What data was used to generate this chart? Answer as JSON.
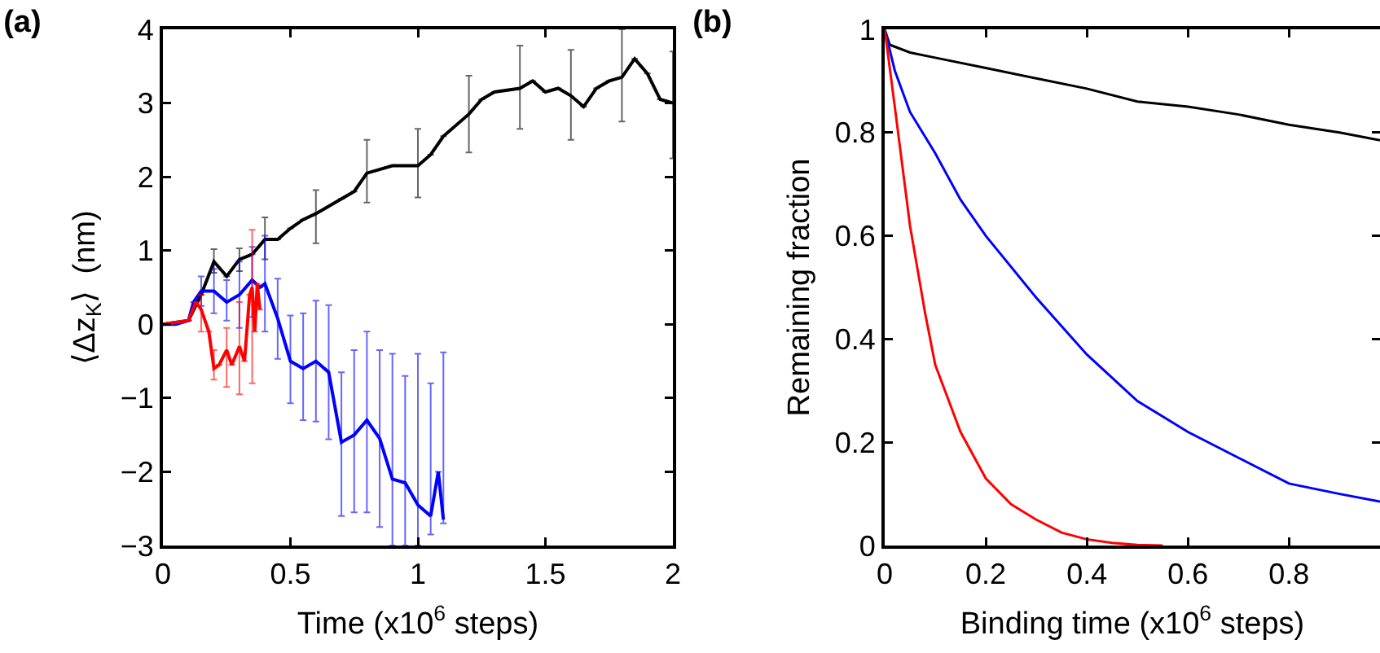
{
  "chart_data": [
    {
      "type": "line",
      "title": "(a)",
      "xlabel": "Time (x10$^{6}$ steps)",
      "ylabel": "⟨Δz$_{K}$⟩  (nm)",
      "xlim": [
        0,
        2
      ],
      "xticks": [
        0,
        0.5,
        1,
        1.5,
        2
      ],
      "ylim": [
        -3,
        4
      ],
      "yticks": [
        -3,
        -2,
        -1,
        0,
        1,
        2,
        3,
        4
      ],
      "grid": false,
      "series": [
        {
          "color": "#000000",
          "x": [
            0,
            0.1,
            0.15,
            0.2,
            0.25,
            0.3,
            0.35,
            0.4,
            0.45,
            0.5,
            0.55,
            0.6,
            0.7,
            0.75,
            0.8,
            0.9,
            1.0,
            1.05,
            1.1,
            1.2,
            1.25,
            1.3,
            1.4,
            1.45,
            1.5,
            1.55,
            1.6,
            1.65,
            1.7,
            1.75,
            1.8,
            1.85,
            1.9,
            1.95,
            2.0
          ],
          "values": [
            0,
            0.05,
            0.4,
            0.85,
            0.65,
            0.88,
            0.95,
            1.15,
            1.15,
            1.3,
            1.42,
            1.5,
            1.7,
            1.8,
            2.05,
            2.15,
            2.15,
            2.3,
            2.55,
            2.85,
            3.05,
            3.15,
            3.2,
            3.3,
            3.15,
            3.2,
            3.1,
            2.95,
            3.2,
            3.3,
            3.35,
            3.6,
            3.4,
            3.05,
            3.0
          ],
          "errors": [
            null,
            null,
            null,
            [
              0.7,
              1.02
            ],
            null,
            [
              0.72,
              1.03
            ],
            null,
            [
              0.88,
              1.45
            ],
            null,
            null,
            null,
            [
              1.1,
              1.82
            ],
            null,
            null,
            [
              1.65,
              2.5
            ],
            null,
            [
              1.72,
              2.65
            ],
            null,
            null,
            [
              2.33,
              3.37
            ],
            null,
            null,
            [
              2.65,
              3.78
            ],
            null,
            null,
            null,
            [
              2.5,
              3.72
            ],
            null,
            null,
            null,
            [
              2.75,
              4.0
            ],
            null,
            null,
            null,
            [
              2.25,
              3.7
            ]
          ]
        },
        {
          "color": "#0000ff",
          "x": [
            0,
            0.05,
            0.1,
            0.12,
            0.15,
            0.2,
            0.25,
            0.3,
            0.35,
            0.38,
            0.4,
            0.45,
            0.5,
            0.55,
            0.6,
            0.65,
            0.7,
            0.75,
            0.8,
            0.85,
            0.9,
            0.95,
            1.0,
            1.05,
            1.08,
            1.1
          ],
          "values": [
            0,
            0,
            0.05,
            0.3,
            0.45,
            0.45,
            0.3,
            0.4,
            0.6,
            0.5,
            0.55,
            0.08,
            -0.5,
            -0.6,
            -0.5,
            -0.65,
            -1.6,
            -1.5,
            -1.3,
            -1.55,
            -2.1,
            -2.15,
            -2.45,
            -2.6,
            -2.0,
            -2.65
          ],
          "errors": [
            null,
            null,
            null,
            null,
            [
              0.25,
              0.65
            ],
            [
              0.15,
              0.75
            ],
            [
              0.05,
              0.6
            ],
            [
              -0.05,
              0.85
            ],
            [
              0.1,
              1.05
            ],
            null,
            [
              -0.1,
              1.2
            ],
            [
              -0.47,
              0.62
            ],
            [
              -1.07,
              0.12
            ],
            [
              -1.3,
              0.15
            ],
            [
              -1.32,
              0.32
            ],
            [
              -1.56,
              0.26
            ],
            [
              -2.6,
              -0.65
            ],
            [
              -2.55,
              -0.35
            ],
            [
              -2.55,
              -0.1
            ],
            [
              -2.75,
              -0.35
            ],
            [
              -3,
              -0.4
            ],
            [
              -3,
              -0.7
            ],
            [
              -3,
              -0.4
            ],
            [
              -2.85,
              -0.8
            ],
            null,
            [
              -2.7,
              -0.38
            ]
          ]
        },
        {
          "color": "#ff0000",
          "x": [
            0,
            0.1,
            0.13,
            0.15,
            0.18,
            0.2,
            0.22,
            0.25,
            0.27,
            0.3,
            0.32,
            0.34,
            0.35,
            0.36,
            0.37,
            0.38
          ],
          "values": [
            0,
            0.05,
            0.3,
            0.2,
            -0.1,
            -0.6,
            -0.55,
            -0.35,
            -0.55,
            -0.3,
            -0.5,
            0.4,
            0.5,
            -0.1,
            0.55,
            0.2
          ],
          "errors": [
            null,
            null,
            null,
            [
              -0.1,
              0.4
            ],
            null,
            [
              -0.75,
              -0.35
            ],
            null,
            [
              -0.85,
              -0.05
            ],
            null,
            [
              -0.95,
              0.3
            ],
            null,
            null,
            [
              -0.8,
              1.28
            ],
            null,
            null,
            null
          ]
        }
      ]
    },
    {
      "type": "line",
      "title": "(b)",
      "xlabel": "Binding time (x10$^{6}$ steps)",
      "ylabel": "Remaining fraction",
      "xlim": [
        0,
        0.98
      ],
      "xticks": [
        0,
        0.2,
        0.4,
        0.6,
        0.8
      ],
      "ylim": [
        0,
        1
      ],
      "yticks": [
        0,
        0.2,
        0.4,
        0.6,
        0.8,
        1
      ],
      "grid": false,
      "series": [
        {
          "color": "#000000",
          "x": [
            0,
            0.01,
            0.05,
            0.1,
            0.2,
            0.3,
            0.4,
            0.5,
            0.6,
            0.7,
            0.8,
            0.9,
            0.98
          ],
          "values": [
            1,
            0.97,
            0.955,
            0.945,
            0.925,
            0.905,
            0.885,
            0.86,
            0.85,
            0.835,
            0.815,
            0.8,
            0.785
          ]
        },
        {
          "color": "#0000ff",
          "x": [
            0,
            0.02,
            0.05,
            0.1,
            0.15,
            0.2,
            0.3,
            0.4,
            0.5,
            0.6,
            0.7,
            0.8,
            0.9,
            0.98
          ],
          "values": [
            1,
            0.92,
            0.84,
            0.76,
            0.67,
            0.6,
            0.48,
            0.37,
            0.28,
            0.22,
            0.17,
            0.12,
            0.1,
            0.085
          ]
        },
        {
          "color": "#ff0000",
          "x": [
            0,
            0.02,
            0.05,
            0.08,
            0.1,
            0.15,
            0.2,
            0.25,
            0.3,
            0.35,
            0.4,
            0.45,
            0.5,
            0.55
          ],
          "values": [
            1,
            0.85,
            0.62,
            0.45,
            0.35,
            0.22,
            0.13,
            0.08,
            0.05,
            0.025,
            0.012,
            0.005,
            0.001,
            0
          ]
        }
      ]
    }
  ]
}
